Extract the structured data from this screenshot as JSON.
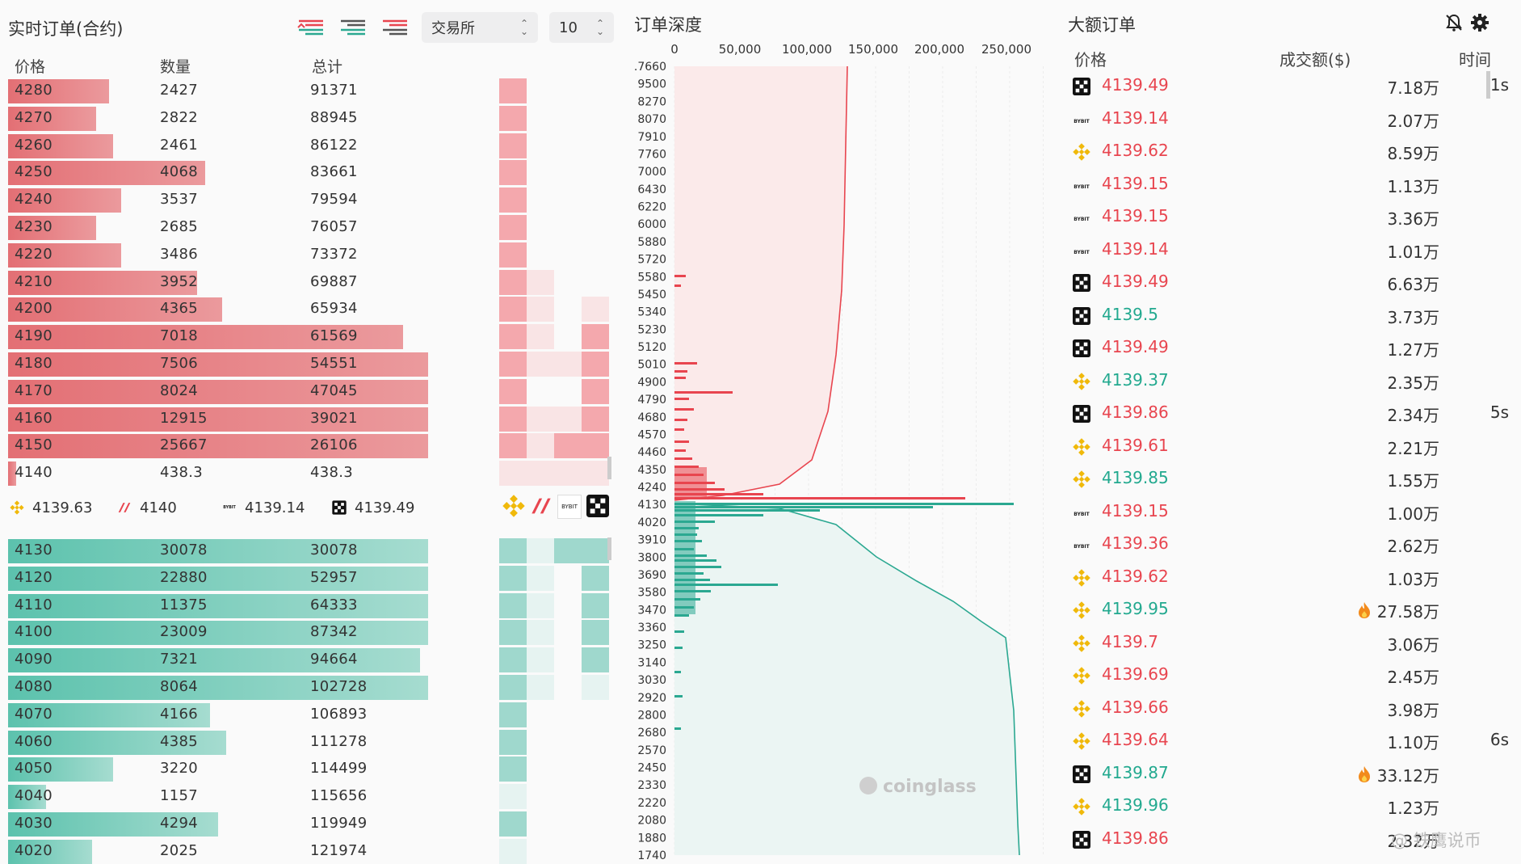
{
  "orderbook": {
    "title": "实时订单(合约)",
    "exchange_select": "交易所",
    "depth_select": "10",
    "headers": {
      "price": "价格",
      "qty": "数量",
      "total": "总计"
    },
    "asks": [
      {
        "price": "4280",
        "qty": "2427",
        "total": "91371",
        "fill": 0.24
      },
      {
        "price": "4270",
        "qty": "2822",
        "total": "88945",
        "fill": 0.21
      },
      {
        "price": "4260",
        "qty": "2461",
        "total": "86122",
        "fill": 0.25
      },
      {
        "price": "4250",
        "qty": "4068",
        "total": "83661",
        "fill": 0.47
      },
      {
        "price": "4240",
        "qty": "3537",
        "total": "79594",
        "fill": 0.27
      },
      {
        "price": "4230",
        "qty": "2685",
        "total": "76057",
        "fill": 0.21
      },
      {
        "price": "4220",
        "qty": "3486",
        "total": "73372",
        "fill": 0.27
      },
      {
        "price": "4210",
        "qty": "3952",
        "total": "69887",
        "fill": 0.45
      },
      {
        "price": "4200",
        "qty": "4365",
        "total": "65934",
        "fill": 0.51
      },
      {
        "price": "4190",
        "qty": "7018",
        "total": "61569",
        "fill": 0.94
      },
      {
        "price": "4180",
        "qty": "7506",
        "total": "54551",
        "fill": 1.0
      },
      {
        "price": "4170",
        "qty": "8024",
        "total": "47045",
        "fill": 1.0
      },
      {
        "price": "4160",
        "qty": "12915",
        "total": "39021",
        "fill": 1.0
      },
      {
        "price": "4150",
        "qty": "25667",
        "total": "26106",
        "fill": 1.0
      },
      {
        "price": "4140",
        "qty": "438.3",
        "total": "438.3",
        "fill": 0.02
      }
    ],
    "mid_prices": [
      {
        "icon": "binance-icon",
        "value": "4139.63"
      },
      {
        "icon": "bitget-icon",
        "value": "4140"
      },
      {
        "icon": "bybit-icon",
        "value": "4139.14"
      },
      {
        "icon": "okx-icon",
        "value": "4139.49"
      }
    ],
    "bids": [
      {
        "price": "4130",
        "qty": "30078",
        "total": "30078",
        "fill": 1.0
      },
      {
        "price": "4120",
        "qty": "22880",
        "total": "52957",
        "fill": 1.0
      },
      {
        "price": "4110",
        "qty": "11375",
        "total": "64333",
        "fill": 1.0
      },
      {
        "price": "4100",
        "qty": "23009",
        "total": "87342",
        "fill": 1.0
      },
      {
        "price": "4090",
        "qty": "7321",
        "total": "94664",
        "fill": 0.98
      },
      {
        "price": "4080",
        "qty": "8064",
        "total": "102728",
        "fill": 1.0
      },
      {
        "price": "4070",
        "qty": "4166",
        "total": "106893",
        "fill": 0.48
      },
      {
        "price": "4060",
        "qty": "4385",
        "total": "111278",
        "fill": 0.52
      },
      {
        "price": "4050",
        "qty": "3220",
        "total": "114499",
        "fill": 0.25
      },
      {
        "price": "4040",
        "qty": "1157",
        "total": "115656",
        "fill": 0.09
      },
      {
        "price": "4030",
        "qty": "4294",
        "total": "119949",
        "fill": 0.5
      },
      {
        "price": "4020",
        "qty": "2025",
        "total": "121974",
        "fill": 0.2
      }
    ]
  },
  "depth": {
    "title": "订单深度",
    "x_ticks": [
      "0",
      "50,000",
      "100,000",
      "150,000",
      "200,000",
      "250,000"
    ],
    "y_ticks": [
      ".7660",
      "9500",
      "8270",
      "8070",
      "7910",
      "7760",
      "7000",
      "6430",
      "6220",
      "6000",
      "5880",
      "5720",
      "5580",
      "5450",
      "5340",
      "5230",
      "5120",
      "5010",
      "4900",
      "4790",
      "4680",
      "4570",
      "4460",
      "4350",
      "4240",
      "4130",
      "4020",
      "3910",
      "3800",
      "3690",
      "3580",
      "3470",
      "3360",
      "3250",
      "3140",
      "3030",
      "2920",
      "2800",
      "2680",
      "2570",
      "2450",
      "2330",
      "2220",
      "2080",
      "1880",
      "1740"
    ],
    "watermark": "coinglass",
    "colors": {
      "ask": "#e8454f",
      "bid": "#2ba891"
    }
  },
  "big_orders": {
    "title": "大额订单",
    "headers": {
      "price": "价格",
      "amount": "成交额($)",
      "time": "时间"
    },
    "rows": [
      {
        "ex": "okx-icon",
        "price": "4139.49",
        "side": "red",
        "amt": "7.18万",
        "time": "1s",
        "hot": false
      },
      {
        "ex": "bybit-icon",
        "price": "4139.14",
        "side": "red",
        "amt": "2.07万",
        "time": "",
        "hot": false
      },
      {
        "ex": "binance-icon",
        "price": "4139.62",
        "side": "red",
        "amt": "8.59万",
        "time": "",
        "hot": false
      },
      {
        "ex": "bybit-icon",
        "price": "4139.15",
        "side": "red",
        "amt": "1.13万",
        "time": "",
        "hot": false
      },
      {
        "ex": "bybit-icon",
        "price": "4139.15",
        "side": "red",
        "amt": "3.36万",
        "time": "",
        "hot": false
      },
      {
        "ex": "bybit-icon",
        "price": "4139.14",
        "side": "red",
        "amt": "1.01万",
        "time": "",
        "hot": false
      },
      {
        "ex": "okx-icon",
        "price": "4139.49",
        "side": "red",
        "amt": "6.63万",
        "time": "",
        "hot": false
      },
      {
        "ex": "okx-icon",
        "price": "4139.5",
        "side": "green",
        "amt": "3.73万",
        "time": "",
        "hot": false
      },
      {
        "ex": "okx-icon",
        "price": "4139.49",
        "side": "red",
        "amt": "1.27万",
        "time": "",
        "hot": false
      },
      {
        "ex": "binance-icon",
        "price": "4139.37",
        "side": "green",
        "amt": "2.35万",
        "time": "",
        "hot": false
      },
      {
        "ex": "okx-icon",
        "price": "4139.86",
        "side": "red",
        "amt": "2.34万",
        "time": "5s",
        "hot": false
      },
      {
        "ex": "binance-icon",
        "price": "4139.61",
        "side": "red",
        "amt": "2.21万",
        "time": "",
        "hot": false
      },
      {
        "ex": "binance-icon",
        "price": "4139.85",
        "side": "green",
        "amt": "1.55万",
        "time": "",
        "hot": false
      },
      {
        "ex": "bybit-icon",
        "price": "4139.15",
        "side": "red",
        "amt": "1.00万",
        "time": "",
        "hot": false
      },
      {
        "ex": "bybit-icon",
        "price": "4139.36",
        "side": "red",
        "amt": "2.62万",
        "time": "",
        "hot": false
      },
      {
        "ex": "binance-icon",
        "price": "4139.62",
        "side": "red",
        "amt": "1.03万",
        "time": "",
        "hot": false
      },
      {
        "ex": "binance-icon",
        "price": "4139.95",
        "side": "green",
        "amt": "27.58万",
        "time": "",
        "hot": true
      },
      {
        "ex": "binance-icon",
        "price": "4139.7",
        "side": "red",
        "amt": "3.06万",
        "time": "",
        "hot": false
      },
      {
        "ex": "binance-icon",
        "price": "4139.69",
        "side": "red",
        "amt": "2.45万",
        "time": "",
        "hot": false
      },
      {
        "ex": "binance-icon",
        "price": "4139.66",
        "side": "red",
        "amt": "3.98万",
        "time": "",
        "hot": false
      },
      {
        "ex": "binance-icon",
        "price": "4139.64",
        "side": "red",
        "amt": "1.10万",
        "time": "6s",
        "hot": false
      },
      {
        "ex": "okx-icon",
        "price": "4139.87",
        "side": "green",
        "amt": "33.12万",
        "time": "",
        "hot": true
      },
      {
        "ex": "binance-icon",
        "price": "4139.96",
        "side": "green",
        "amt": "1.23万",
        "time": "",
        "hot": false
      },
      {
        "ex": "okx-icon",
        "price": "4139.86",
        "side": "red",
        "amt": "2.32万",
        "time": "",
        "hot": false
      }
    ],
    "watermark": "@ 铁鹰说币"
  }
}
